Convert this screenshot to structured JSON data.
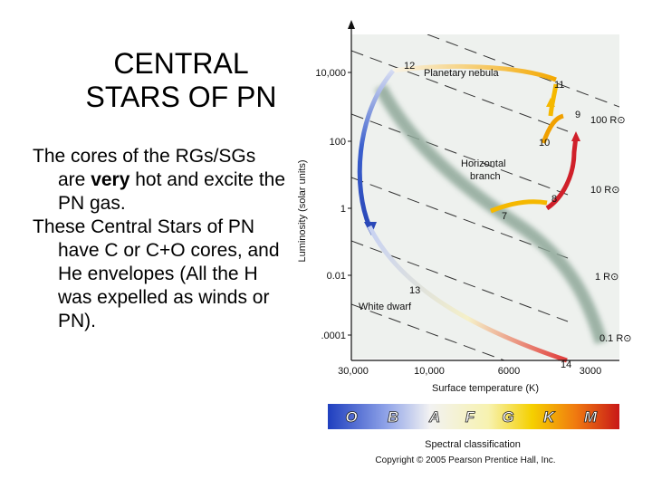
{
  "slide": {
    "title_lines": [
      "CENTRAL",
      "STARS OF PN"
    ],
    "paragraphs": [
      {
        "parts": [
          {
            "text": "The cores of the RGs/SGs are ",
            "bold": false
          },
          {
            "text": "very",
            "bold": true
          },
          {
            "text": " hot and excite the PN gas.",
            "bold": false
          }
        ]
      },
      {
        "parts": [
          {
            "text": "These Central Stars of PN have C or C+O cores, and He envelopes (All the H was expelled as winds or PN).",
            "bold": false
          }
        ]
      }
    ]
  },
  "diagram": {
    "y_axis_label": "Luminosity (solar units)",
    "x_axis_label": "Surface temperature (K)",
    "y_ticks": [
      "10,000",
      "100",
      "1",
      "0.01",
      ".0001"
    ],
    "x_ticks": [
      "30,000",
      "10,000",
      "6000",
      "3000"
    ],
    "radius_labels": [
      "100 R⊙",
      "10 R⊙",
      "1 R⊙",
      "0.1 R⊙"
    ],
    "stage_numbers": [
      "7",
      "8",
      "9",
      "10",
      "11",
      "12",
      "13",
      "14"
    ],
    "region_labels": {
      "planetary_nebula": "Planetary nebula",
      "horizontal_branch": [
        "Horizontal",
        "branch"
      ],
      "white_dwarf": "White dwarf"
    },
    "spectral_classes": [
      "O",
      "B",
      "A",
      "F",
      "G",
      "K",
      "M"
    ],
    "spectral_caption": "Spectral classification",
    "copyright": "Copyright © 2005 Pearson Prentice Hall, Inc.",
    "colors": {
      "hot_track": "#3a5fcd",
      "cool_track": "#d0202a",
      "yellow_track": "#f5b800",
      "main_sequence_band": "#8fa89a",
      "background": "#eef1ee"
    }
  }
}
